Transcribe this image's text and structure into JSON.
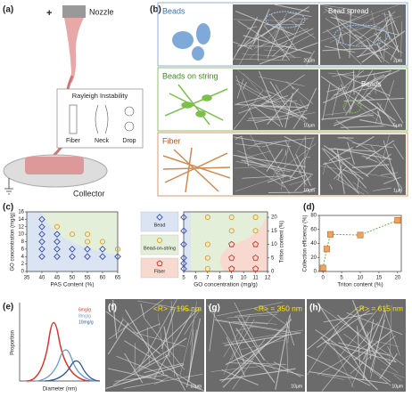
{
  "panel_a": {
    "label": "(a)",
    "plus": "+",
    "nozzle": "Nozzle",
    "inset_title": "Rayleigh Instability",
    "inset_labels": [
      "Fiber",
      "Neck",
      "Drop"
    ],
    "collector": "Collector"
  },
  "panel_b": {
    "label": "(b)",
    "rows": [
      {
        "title": "Beads",
        "note": "Bead spread",
        "scales": [
          "20µm",
          "2µm"
        ]
      },
      {
        "title": "Beads on string",
        "note": "Beads",
        "scales": [
          "10µm",
          "5µm"
        ]
      },
      {
        "title": "Fiber",
        "scales": [
          "10µm",
          "1µm"
        ]
      }
    ]
  },
  "panel_c": {
    "label": "(c)"
  },
  "panel_d": {
    "label": "(d)"
  },
  "panel_e": {
    "label": "(e)",
    "ylabel": "Proportion",
    "xlabel": "Diameter (nm)",
    "legend": [
      "6mg/g",
      "8mg/g",
      "10mg/g"
    ]
  },
  "images": [
    {
      "label": "(f)",
      "note": "<R> = 195 nm",
      "scale": "10µm"
    },
    {
      "label": "(g)",
      "note": "<R> = 350 nm",
      "scale": "10µm"
    },
    {
      "label": "(h)",
      "note": "<R> = 615 nm",
      "scale": "10µm"
    }
  ],
  "chart_data": [
    {
      "type": "scatter",
      "xlabel": "PAS Content (%)",
      "ylabel": "GO concentration (mg/g)",
      "xlim": [
        35,
        65
      ],
      "xticks": [
        35,
        40,
        45,
        50,
        55,
        60,
        65
      ],
      "ylim": [
        0,
        16
      ],
      "yticks": [
        0,
        2,
        4,
        6,
        8,
        10,
        12,
        14,
        16
      ],
      "series": [
        {
          "color": "#3b50b0",
          "marker": "diamond",
          "x": [
            40,
            40,
            40,
            40,
            40,
            40,
            45,
            45,
            45,
            45,
            50,
            50,
            55,
            55,
            60,
            60,
            65
          ],
          "values": [
            14,
            12,
            10,
            8,
            6,
            4,
            10,
            8,
            6,
            4,
            6,
            4,
            6,
            4,
            6,
            4,
            4
          ]
        },
        {
          "color": "#e69b1c",
          "marker": "circle",
          "x": [
            45,
            50,
            55,
            55,
            60,
            65
          ],
          "values": [
            12,
            10,
            10,
            8,
            8,
            6
          ]
        }
      ]
    },
    {
      "type": "scatter",
      "xlabel": "GO concentration (mg/g)",
      "y2label": "Triton content (%)",
      "xlim": [
        5,
        12
      ],
      "xticks": [
        5,
        6,
        7,
        8,
        9,
        10,
        11,
        12
      ],
      "y2lim": [
        0,
        22
      ],
      "y2ticks": [
        0,
        5,
        10,
        15,
        20
      ],
      "series": [
        {
          "name": "Bead",
          "color": "#3b50b0",
          "marker": "diamond",
          "axis": "y2",
          "x": [
            5,
            5,
            5,
            5,
            5,
            5
          ],
          "values": [
            1,
            3,
            5,
            10,
            15,
            20
          ]
        },
        {
          "name": "Bead-on-string",
          "color": "#e69b1c",
          "marker": "circle",
          "axis": "y2",
          "x": [
            7,
            7,
            7,
            7,
            9,
            9,
            11,
            11
          ],
          "values": [
            1,
            5,
            10,
            20,
            15,
            20,
            15,
            20
          ]
        },
        {
          "name": "Fiber",
          "color": "#c0392b",
          "marker": "pentagon",
          "axis": "y2",
          "x": [
            9,
            9,
            9,
            11,
            11,
            11
          ],
          "values": [
            1,
            5,
            10,
            1,
            5,
            10
          ]
        }
      ]
    },
    {
      "type": "line",
      "xlabel": "Triton content (%)",
      "ylabel": "Collection efficiency (%)",
      "xlim": [
        -1,
        21
      ],
      "xticks": [
        0,
        5,
        10,
        15,
        20
      ],
      "ylim": [
        0,
        80
      ],
      "yticks": [
        0,
        20,
        40,
        60,
        80
      ],
      "series": [
        {
          "color": "#f0a35e",
          "line_color": "#6aa84f",
          "marker": "square",
          "x": [
            0,
            1,
            2,
            10,
            20
          ],
          "values": [
            5,
            32,
            53,
            52,
            73
          ]
        }
      ]
    }
  ]
}
